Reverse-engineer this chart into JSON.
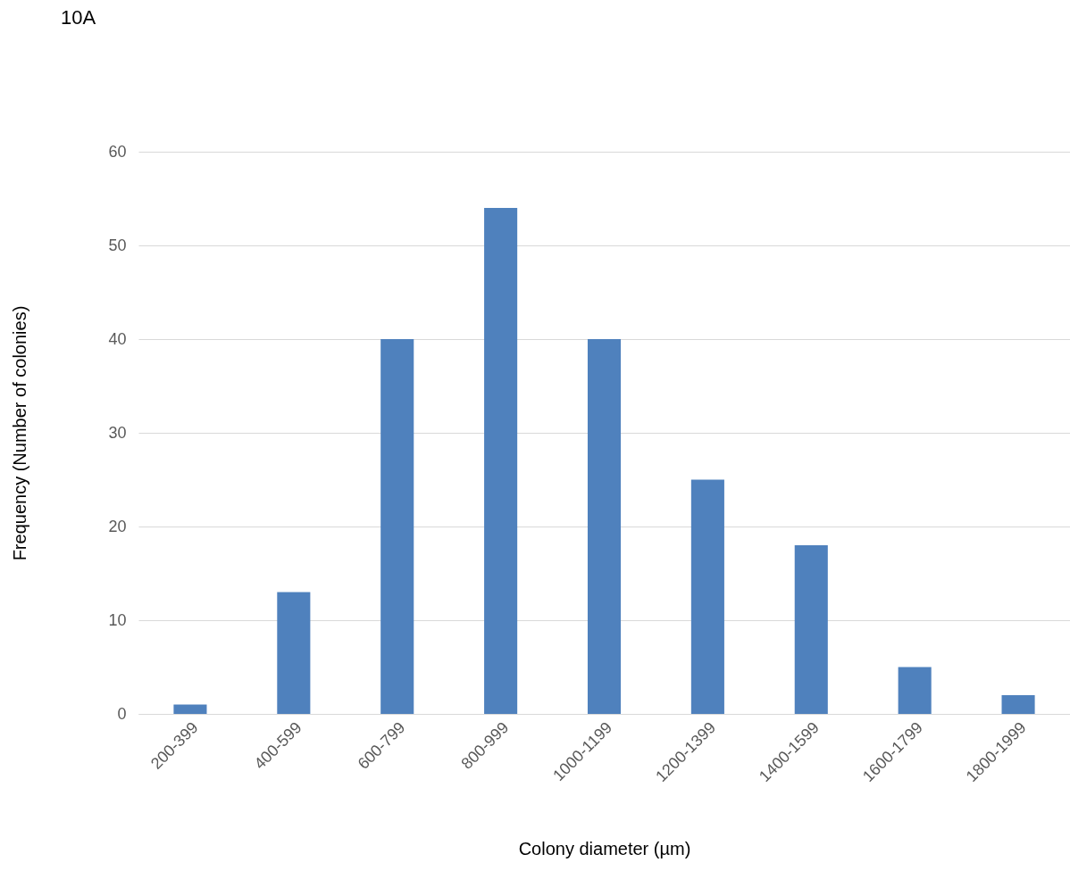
{
  "chart_data": {
    "type": "bar",
    "title": "10A",
    "xlabel": "Colony diameter (µm)",
    "ylabel": "Frequency (Number of colonies)",
    "categories": [
      "200-399",
      "400-599",
      "600-799",
      "800-999",
      "1000-1199",
      "1200-1399",
      "1400-1599",
      "1600-1799",
      "1800-1999"
    ],
    "values": [
      1,
      13,
      40,
      54,
      40,
      25,
      18,
      5,
      2
    ],
    "color": "#4f81bd",
    "ylim": [
      0,
      60
    ],
    "yticks": [
      0,
      10,
      20,
      30,
      40,
      50,
      60
    ],
    "grid": "y"
  }
}
